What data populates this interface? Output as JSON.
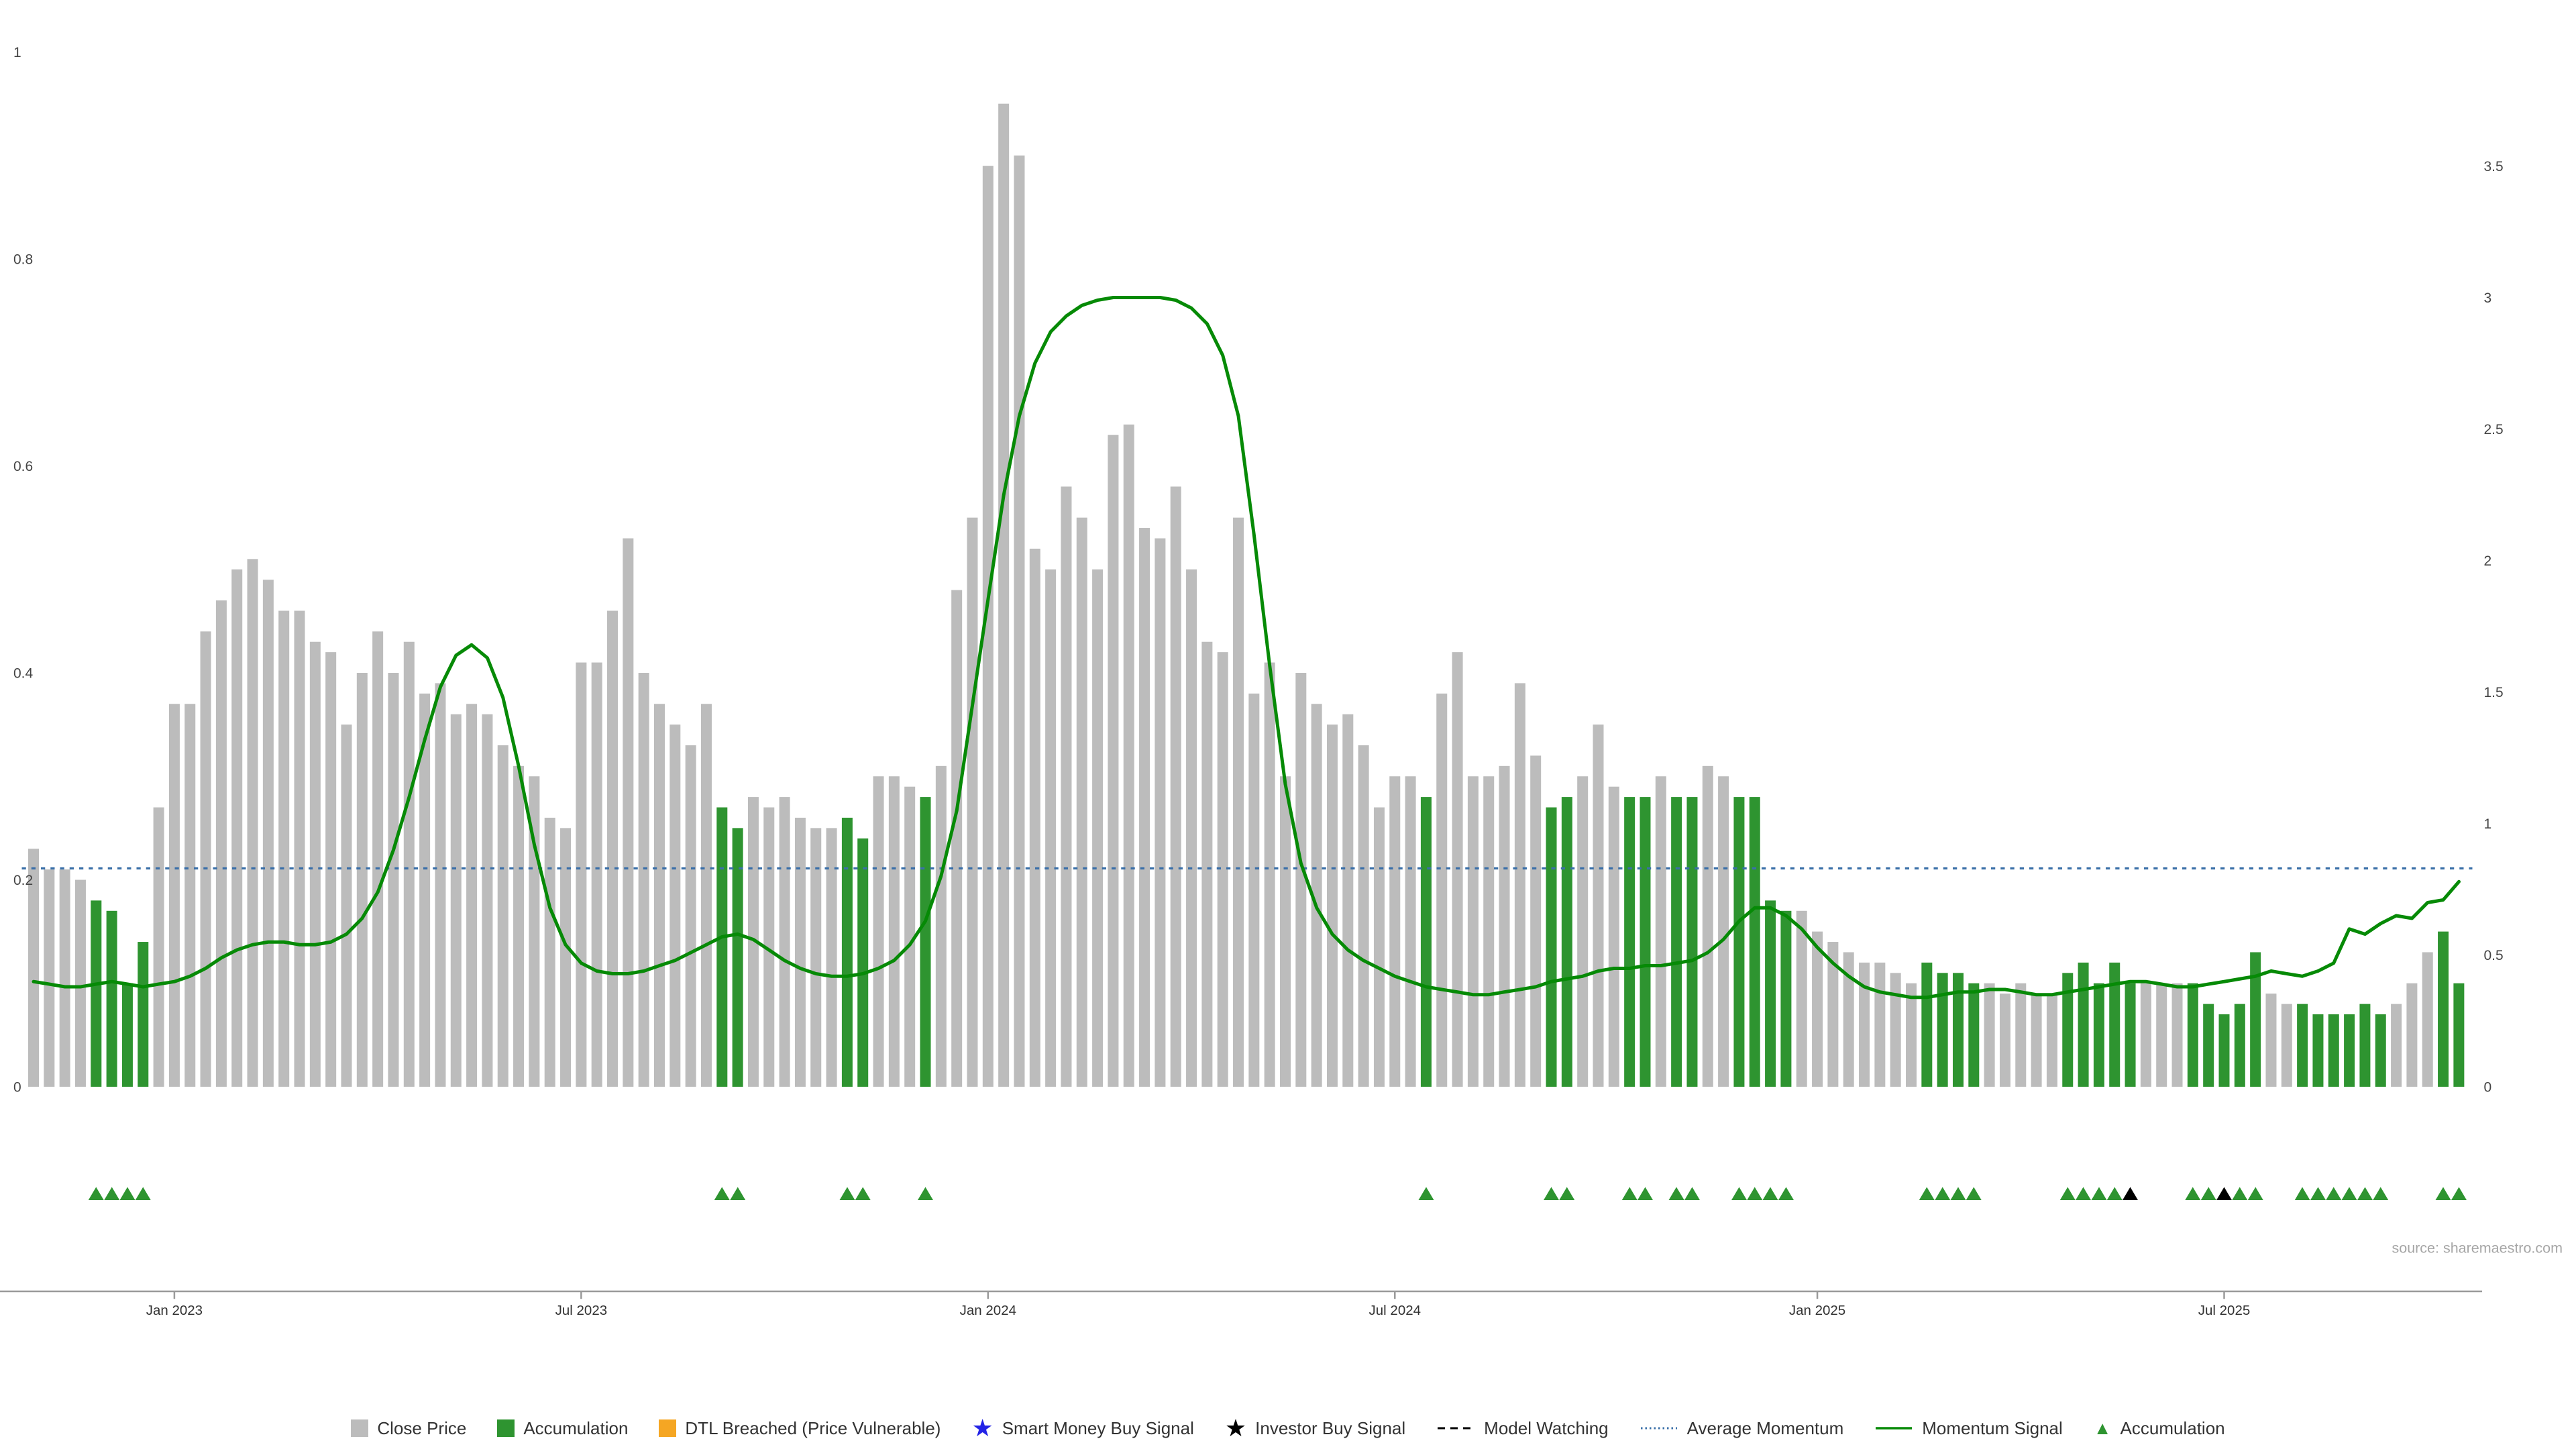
{
  "meta": {
    "source": "source: sharemaestro.com"
  },
  "colors": {
    "close_gray": "#bcbcbc",
    "accum_green": "#2e9430",
    "dtl_orange": "#f5a623",
    "smart_blue": "#2323e6",
    "investor_black": "#000000",
    "watch_black": "#000000",
    "avg_blue": "#3a6fa8",
    "momentum_green": "#068a06",
    "axis_text": "#444444",
    "x_text": "#333333",
    "axis_line": "#9a9a9a",
    "source_text": "#a6a6a6"
  },
  "axes": {
    "left_ticks": [
      "0",
      "0.2",
      "0.4",
      "0.6",
      "0.8",
      "1"
    ],
    "right_ticks": [
      "0",
      "0.5",
      "1",
      "1.5",
      "2",
      "2.5",
      "3",
      "3.5"
    ],
    "x_ticks": [
      "Jan 2023",
      "Jul 2023",
      "Jan 2024",
      "Jul 2024",
      "Jan 2025",
      "Jul 2025"
    ],
    "x_tick_week_index": [
      9,
      35,
      61,
      87,
      114,
      140
    ],
    "left_range": [
      0,
      1
    ],
    "right_range": [
      0,
      3.5
    ]
  },
  "chart_data": {
    "type": "bar+line",
    "interval": "weekly",
    "n_weeks": 156,
    "title": "",
    "xlabel": "",
    "ylabel_left": "",
    "ylabel_right": "",
    "grid": false,
    "legend_position": "bottom",
    "close_axis": "left",
    "momentum_axis": "right",
    "average_momentum": 0.83,
    "close": [
      0.23,
      0.21,
      0.21,
      0.2,
      0.18,
      0.17,
      0.1,
      0.14,
      0.27,
      0.37,
      0.37,
      0.44,
      0.47,
      0.5,
      0.51,
      0.49,
      0.46,
      0.46,
      0.43,
      0.42,
      0.35,
      0.4,
      0.44,
      0.4,
      0.43,
      0.38,
      0.39,
      0.36,
      0.37,
      0.36,
      0.33,
      0.31,
      0.3,
      0.26,
      0.25,
      0.41,
      0.41,
      0.46,
      0.53,
      0.4,
      0.37,
      0.35,
      0.33,
      0.37,
      0.27,
      0.25,
      0.28,
      0.27,
      0.28,
      0.26,
      0.25,
      0.25,
      0.26,
      0.24,
      0.3,
      0.3,
      0.29,
      0.28,
      0.31,
      0.48,
      0.55,
      0.89,
      0.95,
      0.9,
      0.52,
      0.5,
      0.58,
      0.55,
      0.5,
      0.63,
      0.64,
      0.54,
      0.53,
      0.58,
      0.5,
      0.43,
      0.42,
      0.55,
      0.38,
      0.41,
      0.3,
      0.4,
      0.37,
      0.35,
      0.36,
      0.33,
      0.27,
      0.3,
      0.3,
      0.28,
      0.38,
      0.42,
      0.3,
      0.3,
      0.31,
      0.39,
      0.32,
      0.27,
      0.28,
      0.3,
      0.35,
      0.29,
      0.28,
      0.28,
      0.3,
      0.28,
      0.28,
      0.31,
      0.3,
      0.28,
      0.28,
      0.18,
      0.17,
      0.17,
      0.15,
      0.14,
      0.13,
      0.12,
      0.12,
      0.11,
      0.1,
      0.12,
      0.11,
      0.11,
      0.1,
      0.1,
      0.09,
      0.1,
      0.09,
      0.09,
      0.11,
      0.12,
      0.1,
      0.12,
      0.1,
      0.1,
      0.1,
      0.1,
      0.1,
      0.08,
      0.07,
      0.08,
      0.13,
      0.09,
      0.08,
      0.08,
      0.07,
      0.07,
      0.07,
      0.08,
      0.07,
      0.08,
      0.1,
      0.13,
      0.15,
      0.1
    ],
    "momentum": [
      0.4,
      0.39,
      0.38,
      0.38,
      0.39,
      0.4,
      0.39,
      0.38,
      0.39,
      0.4,
      0.42,
      0.45,
      0.49,
      0.52,
      0.54,
      0.55,
      0.55,
      0.54,
      0.54,
      0.55,
      0.58,
      0.64,
      0.74,
      0.9,
      1.1,
      1.32,
      1.52,
      1.64,
      1.68,
      1.63,
      1.48,
      1.22,
      0.92,
      0.68,
      0.54,
      0.47,
      0.44,
      0.43,
      0.43,
      0.44,
      0.46,
      0.48,
      0.51,
      0.54,
      0.57,
      0.58,
      0.56,
      0.52,
      0.48,
      0.45,
      0.43,
      0.42,
      0.42,
      0.43,
      0.45,
      0.48,
      0.54,
      0.63,
      0.8,
      1.05,
      1.45,
      1.85,
      2.25,
      2.55,
      2.75,
      2.87,
      2.93,
      2.97,
      2.99,
      3.0,
      3.0,
      3.0,
      3.0,
      2.99,
      2.96,
      2.9,
      2.78,
      2.55,
      2.1,
      1.6,
      1.15,
      0.85,
      0.68,
      0.58,
      0.52,
      0.48,
      0.45,
      0.42,
      0.4,
      0.38,
      0.37,
      0.36,
      0.35,
      0.35,
      0.36,
      0.37,
      0.38,
      0.4,
      0.41,
      0.42,
      0.44,
      0.45,
      0.45,
      0.46,
      0.46,
      0.47,
      0.48,
      0.51,
      0.56,
      0.63,
      0.68,
      0.68,
      0.65,
      0.6,
      0.53,
      0.47,
      0.42,
      0.38,
      0.36,
      0.35,
      0.34,
      0.34,
      0.35,
      0.36,
      0.36,
      0.37,
      0.37,
      0.36,
      0.35,
      0.35,
      0.36,
      0.37,
      0.38,
      0.39,
      0.4,
      0.4,
      0.39,
      0.38,
      0.38,
      0.39,
      0.4,
      0.41,
      0.42,
      0.44,
      0.43,
      0.42,
      0.44,
      0.47,
      0.6,
      0.58,
      0.62,
      0.65,
      0.64,
      0.7,
      0.71,
      0.78
    ],
    "accumulation_weeks": [
      4,
      5,
      6,
      7,
      44,
      45,
      52,
      53,
      57,
      89,
      97,
      98,
      102,
      103,
      105,
      106,
      109,
      110,
      111,
      112,
      121,
      122,
      123,
      124,
      130,
      131,
      132,
      133,
      134,
      138,
      139,
      140,
      141,
      142,
      145,
      146,
      147,
      148,
      149,
      150,
      154,
      155
    ],
    "investor_buy_weeks": [
      134,
      140
    ],
    "smart_money_buy_weeks": [],
    "dtl_breached_weeks": [],
    "model_watching_weeks": []
  },
  "legend": {
    "items": [
      {
        "label": "Close Price",
        "swatch": "square",
        "color_key": "close_gray"
      },
      {
        "label": "Accumulation",
        "swatch": "square",
        "color_key": "accum_green"
      },
      {
        "label": "DTL Breached (Price Vulnerable)",
        "swatch": "square",
        "color_key": "dtl_orange"
      },
      {
        "label": "Smart Money Buy Signal",
        "swatch": "star",
        "color_key": "smart_blue"
      },
      {
        "label": "Investor Buy Signal",
        "swatch": "star",
        "color_key": "investor_black"
      },
      {
        "label": "Model Watching",
        "swatch": "dashed-line",
        "color_key": "watch_black"
      },
      {
        "label": "Average Momentum",
        "swatch": "dotted-line",
        "color_key": "avg_blue"
      },
      {
        "label": "Momentum Signal",
        "swatch": "solid-line",
        "color_key": "momentum_green"
      },
      {
        "label": "Accumulation",
        "swatch": "triangle",
        "color_key": "accum_green"
      }
    ]
  }
}
